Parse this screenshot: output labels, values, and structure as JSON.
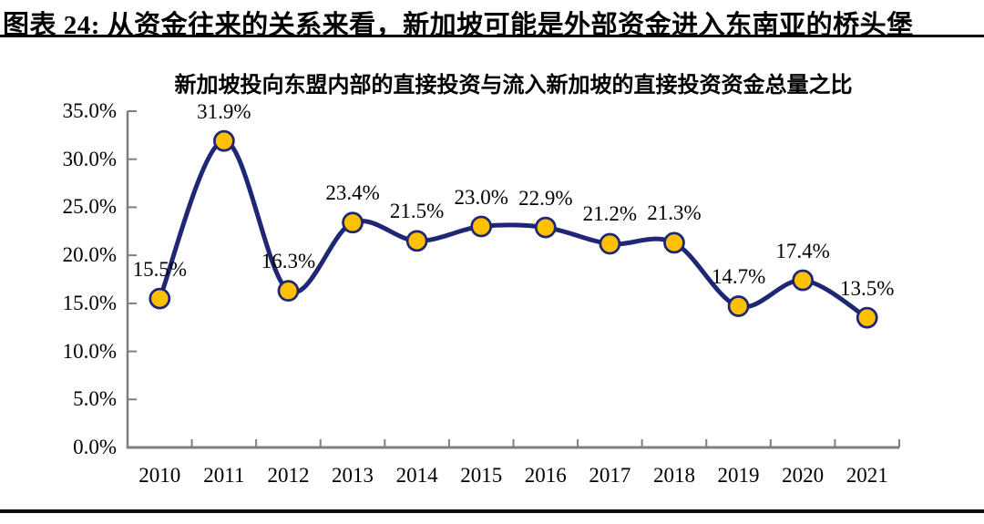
{
  "header": {
    "caption": "图表 24: 从资金往来的关系来看，新加坡可能是外部资金进入东南亚的桥头堡"
  },
  "chart_data": {
    "type": "line",
    "title": "新加坡投向东盟内部的直接投资与流入新加坡的直接投资资金总量之比",
    "categories": [
      "2010",
      "2011",
      "2012",
      "2013",
      "2014",
      "2015",
      "2016",
      "2017",
      "2018",
      "2019",
      "2020",
      "2021"
    ],
    "values": [
      15.5,
      31.9,
      16.3,
      23.4,
      21.5,
      23.0,
      22.9,
      21.2,
      21.3,
      14.7,
      17.4,
      13.5
    ],
    "data_labels": [
      "15.5%",
      "31.9%",
      "16.3%",
      "23.4%",
      "21.5%",
      "23.0%",
      "22.9%",
      "21.2%",
      "21.3%",
      "14.7%",
      "17.4%",
      "13.5%"
    ],
    "y_tick_labels": [
      "0.0%",
      "5.0%",
      "10.0%",
      "15.0%",
      "20.0%",
      "25.0%",
      "30.0%",
      "35.0%"
    ],
    "ylim": [
      0,
      35
    ],
    "y_tick_step": 5,
    "xlabel": "",
    "ylabel": "",
    "grid": false,
    "legend": "none",
    "smooth": true,
    "marker": "circle",
    "style": {
      "line_color": "#1F2775",
      "marker_fill": "#FFC000",
      "marker_stroke": "#1F2775",
      "axis_color": "#7F7F7F",
      "text_color": "#000000"
    }
  }
}
